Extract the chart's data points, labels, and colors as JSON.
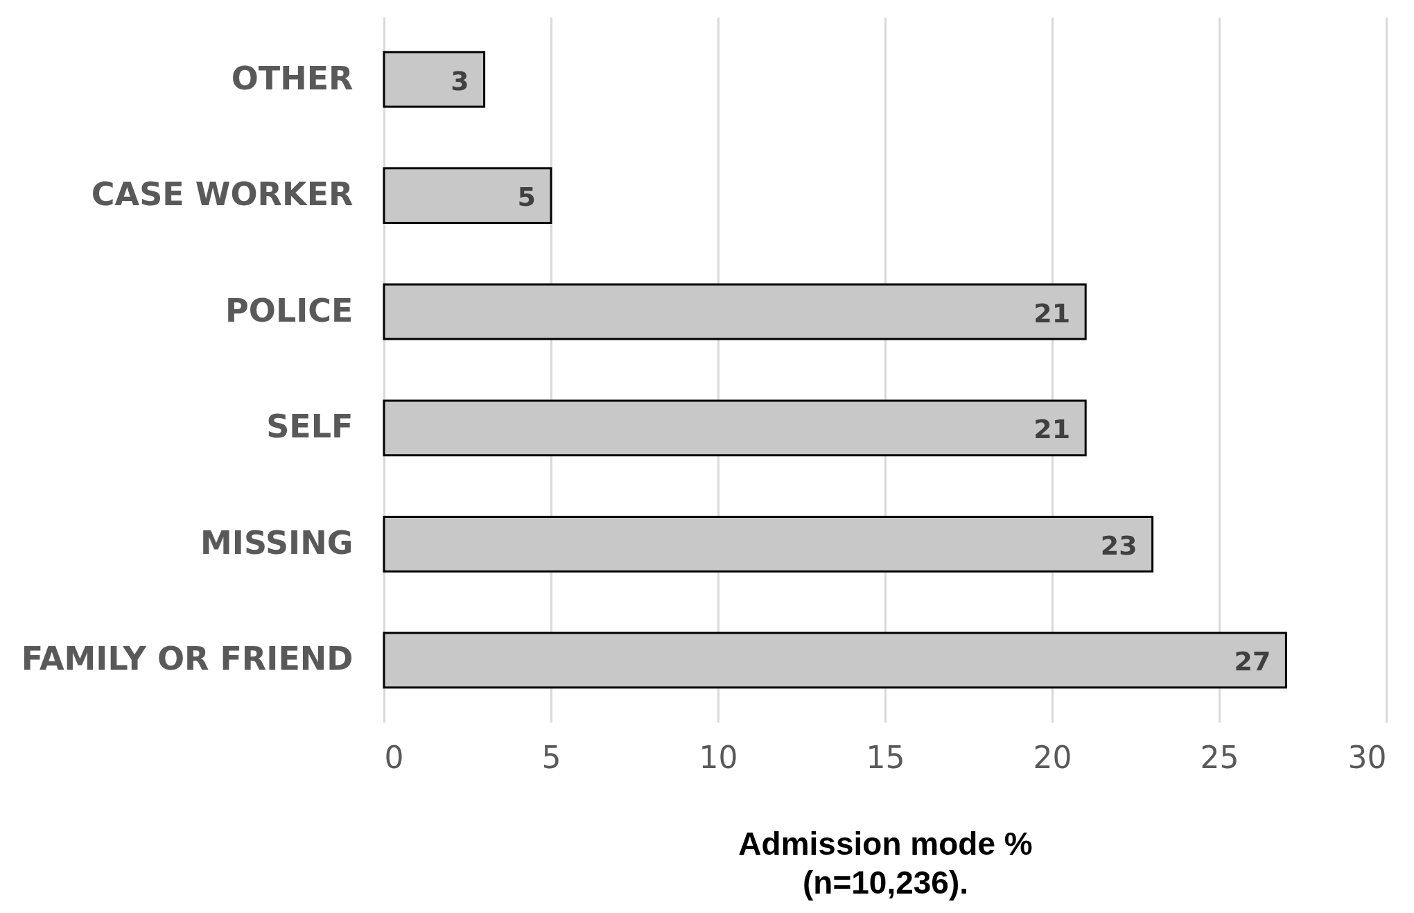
{
  "chart_data": {
    "type": "bar",
    "orientation": "horizontal",
    "xlabel": "Admission mode %\n(n=10,236).",
    "categories": [
      "OTHER",
      "CASE WORKER",
      "POLICE",
      "SELF",
      "MISSING",
      "FAMILY OR FRIEND"
    ],
    "values": [
      3,
      5,
      21,
      21,
      23,
      27
    ],
    "color": "#c8c8c8",
    "xlim": [
      0,
      30
    ],
    "xticks": [
      0,
      5,
      10,
      15,
      20,
      25,
      30
    ],
    "grid": "x",
    "data_labels": true
  }
}
